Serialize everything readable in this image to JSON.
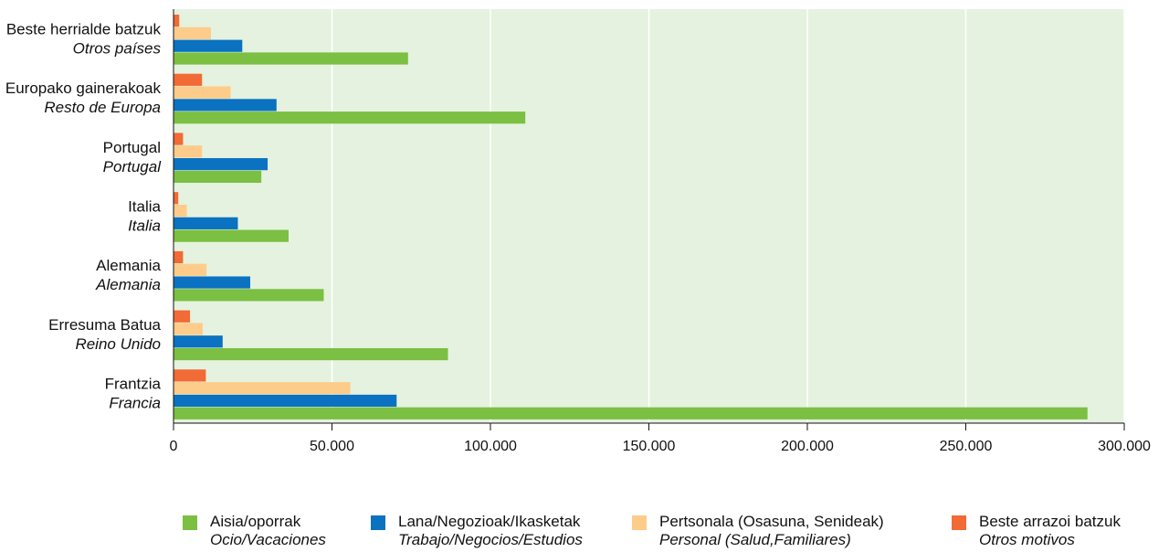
{
  "chart_data": {
    "type": "bar",
    "orientation": "horizontal",
    "categories": [
      {
        "eu": "Beste herrialde batzuk",
        "es": "Otros países"
      },
      {
        "eu": "Europako gainerakoak",
        "es": "Resto de Europa"
      },
      {
        "eu": "Portugal",
        "es": "Portugal"
      },
      {
        "eu": "Italia",
        "es": "Italia"
      },
      {
        "eu": "Alemania",
        "es": "Alemania"
      },
      {
        "eu": "Erresuma Batua",
        "es": "Reino Unido"
      },
      {
        "eu": "Frantzia",
        "es": "Francia"
      }
    ],
    "series": [
      {
        "name": "Beste arrazoi batzuk",
        "name_es": "Otros motivos",
        "color": "#f26a35",
        "values": [
          1800,
          9000,
          3000,
          1500,
          3000,
          5200,
          10200
        ]
      },
      {
        "name": "Pertsonala (Osasuna, Senideak)",
        "name_es": "Personal (Salud,Familiares)",
        "color": "#fdcc8a",
        "values": [
          11800,
          18000,
          9000,
          4200,
          10400,
          9200,
          55800
        ]
      },
      {
        "name": "Lana/Negozioak/Ikasketak",
        "name_es": "Trabajo/Negocios/Estudios",
        "color": "#0a72c0",
        "values": [
          21700,
          32500,
          29700,
          20300,
          24200,
          15500,
          70400
        ]
      },
      {
        "name": "Aisia/oporrak",
        "name_es": "Ocio/Vacaciones",
        "color": "#7bbf43",
        "values": [
          74000,
          111000,
          27700,
          36300,
          47400,
          86600,
          288400
        ]
      }
    ],
    "legend_order": [
      3,
      2,
      1,
      0
    ],
    "xlim": [
      0,
      300000
    ],
    "xticks": [
      0,
      50000,
      100000,
      150000,
      200000,
      250000,
      300000
    ],
    "xtick_labels": [
      "0",
      "50.000",
      "100.000",
      "150.000",
      "200.000",
      "250.000",
      "300.000"
    ],
    "plot_background": "#e5f2df",
    "grid": true,
    "legend_position": "bottom"
  }
}
